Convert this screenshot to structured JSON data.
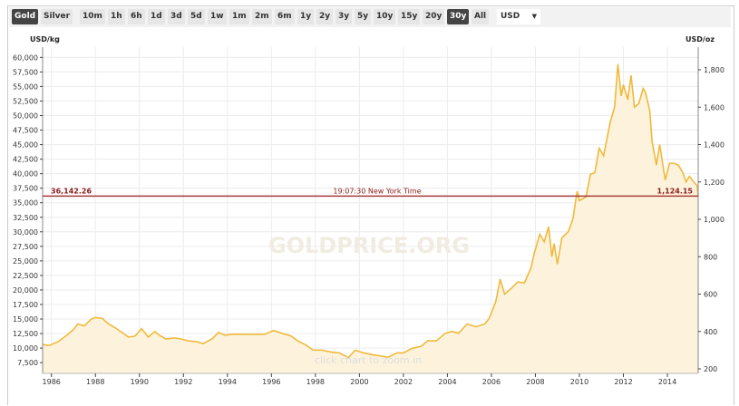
{
  "toolbar": {
    "metals": [
      "Gold",
      "Silver"
    ],
    "ranges": [
      "10m",
      "1h",
      "6h",
      "1d",
      "3d",
      "5d",
      "1w",
      "1m",
      "2m",
      "6m",
      "1y",
      "2y",
      "3y",
      "5y",
      "10y",
      "15y",
      "20y",
      "30y",
      "All"
    ],
    "active_metal": "Gold",
    "active_range": "30y",
    "currency": "USD",
    "currency_arrow": "▼"
  },
  "chart_data": {
    "type": "area",
    "left_axis_label": "USD/kg",
    "right_axis_label": "USD/oz",
    "watermark": "GOLDPRICE.ORG",
    "hint": "click chart to zoom in",
    "left_ticks": [
      7500,
      10000,
      12500,
      15000,
      17500,
      20000,
      22500,
      25000,
      27500,
      30000,
      32500,
      35000,
      37500,
      40000,
      42500,
      45000,
      47500,
      50000,
      52500,
      55000,
      57500,
      60000
    ],
    "left_tick_labels": [
      "7,500",
      "10,000",
      "12,500",
      "15,000",
      "17,500",
      "20,000",
      "22,500",
      "25,000",
      "27,500",
      "30,000",
      "32,500",
      "35,000",
      "37,500",
      "40,000",
      "42,500",
      "45,000",
      "47,500",
      "50,000",
      "52,500",
      "55,000",
      "57,500",
      "60,000"
    ],
    "right_ticks": [
      200,
      400,
      600,
      800,
      1000,
      1200,
      1400,
      1600,
      1800
    ],
    "right_tick_labels": [
      "200",
      "400",
      "600",
      "800",
      "1,000",
      "1,200",
      "1,400",
      "1,600",
      "1,800"
    ],
    "x_ticks": [
      1986,
      1988,
      1990,
      1992,
      1994,
      1996,
      1998,
      2000,
      2002,
      2004,
      2006,
      2008,
      2010,
      2012,
      2014
    ],
    "xlim": [
      1985.6,
      2015.4
    ],
    "grid": true,
    "current": {
      "usd_kg": "36,142.26",
      "usd_oz": "1,124.15",
      "value_oz": 1124.15,
      "time": "19:07:30 New York Time"
    },
    "colors": {
      "line": "#f0b93b",
      "fill": "#fdf3dc",
      "current_line": "#a83a3a"
    },
    "series_usd_oz": [
      [
        1985.6,
        330
      ],
      [
        1985.9,
        325
      ],
      [
        1986.3,
        345
      ],
      [
        1986.7,
        380
      ],
      [
        1987.0,
        410
      ],
      [
        1987.2,
        440
      ],
      [
        1987.5,
        430
      ],
      [
        1987.8,
        465
      ],
      [
        1988.0,
        475
      ],
      [
        1988.3,
        470
      ],
      [
        1988.6,
        440
      ],
      [
        1988.9,
        420
      ],
      [
        1989.2,
        395
      ],
      [
        1989.5,
        370
      ],
      [
        1989.8,
        375
      ],
      [
        1990.1,
        415
      ],
      [
        1990.4,
        370
      ],
      [
        1990.7,
        400
      ],
      [
        1990.9,
        380
      ],
      [
        1991.2,
        360
      ],
      [
        1991.6,
        365
      ],
      [
        1991.9,
        360
      ],
      [
        1992.2,
        350
      ],
      [
        1992.6,
        345
      ],
      [
        1992.9,
        335
      ],
      [
        1993.3,
        360
      ],
      [
        1993.6,
        395
      ],
      [
        1993.9,
        380
      ],
      [
        1994.2,
        385
      ],
      [
        1994.6,
        385
      ],
      [
        1994.9,
        385
      ],
      [
        1995.3,
        385
      ],
      [
        1995.7,
        385
      ],
      [
        1996.1,
        405
      ],
      [
        1996.5,
        390
      ],
      [
        1996.9,
        375
      ],
      [
        1997.2,
        350
      ],
      [
        1997.6,
        325
      ],
      [
        1997.9,
        300
      ],
      [
        1998.3,
        300
      ],
      [
        1998.7,
        290
      ],
      [
        1999.1,
        285
      ],
      [
        1999.5,
        260
      ],
      [
        1999.8,
        300
      ],
      [
        2000.2,
        285
      ],
      [
        2000.6,
        275
      ],
      [
        2000.9,
        270
      ],
      [
        2001.3,
        262
      ],
      [
        2001.7,
        285
      ],
      [
        2002.0,
        285
      ],
      [
        2002.4,
        310
      ],
      [
        2002.8,
        320
      ],
      [
        2003.1,
        350
      ],
      [
        2003.5,
        350
      ],
      [
        2003.9,
        390
      ],
      [
        2004.2,
        400
      ],
      [
        2004.5,
        390
      ],
      [
        2004.9,
        440
      ],
      [
        2005.3,
        425
      ],
      [
        2005.7,
        440
      ],
      [
        2005.9,
        470
      ],
      [
        2006.2,
        560
      ],
      [
        2006.4,
        680
      ],
      [
        2006.6,
        600
      ],
      [
        2006.9,
        630
      ],
      [
        2007.2,
        665
      ],
      [
        2007.5,
        660
      ],
      [
        2007.8,
        740
      ],
      [
        2007.95,
        820
      ],
      [
        2008.2,
        920
      ],
      [
        2008.4,
        880
      ],
      [
        2008.6,
        960
      ],
      [
        2008.75,
        800
      ],
      [
        2008.85,
        870
      ],
      [
        2009.0,
        760
      ],
      [
        2009.2,
        900
      ],
      [
        2009.5,
        935
      ],
      [
        2009.7,
        1000
      ],
      [
        2009.9,
        1150
      ],
      [
        2010.0,
        1100
      ],
      [
        2010.3,
        1120
      ],
      [
        2010.5,
        1240
      ],
      [
        2010.7,
        1250
      ],
      [
        2010.9,
        1380
      ],
      [
        2011.1,
        1340
      ],
      [
        2011.4,
        1520
      ],
      [
        2011.6,
        1600
      ],
      [
        2011.75,
        1830
      ],
      [
        2011.9,
        1660
      ],
      [
        2012.0,
        1720
      ],
      [
        2012.2,
        1640
      ],
      [
        2012.35,
        1770
      ],
      [
        2012.5,
        1600
      ],
      [
        2012.7,
        1620
      ],
      [
        2012.9,
        1700
      ],
      [
        2013.0,
        1680
      ],
      [
        2013.2,
        1580
      ],
      [
        2013.3,
        1420
      ],
      [
        2013.5,
        1290
      ],
      [
        2013.65,
        1400
      ],
      [
        2013.9,
        1210
      ],
      [
        2014.1,
        1300
      ],
      [
        2014.3,
        1300
      ],
      [
        2014.5,
        1290
      ],
      [
        2014.7,
        1250
      ],
      [
        2014.85,
        1200
      ],
      [
        2015.0,
        1230
      ],
      [
        2015.2,
        1200
      ],
      [
        2015.35,
        1180
      ],
      [
        2015.4,
        1124
      ]
    ]
  }
}
